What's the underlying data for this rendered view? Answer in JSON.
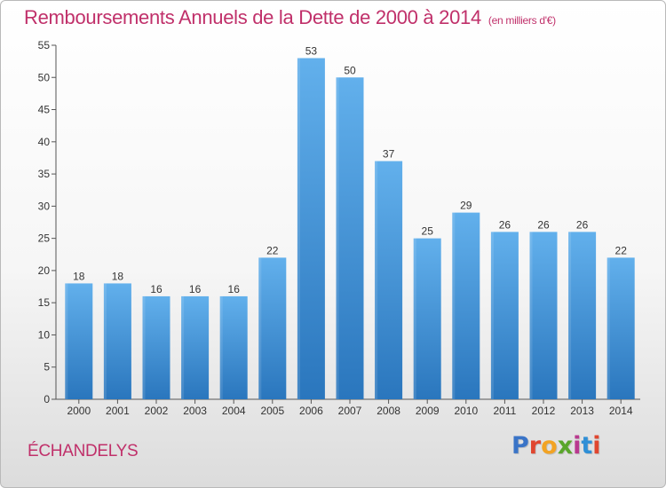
{
  "header": {
    "title": "Remboursements Annuels de la Dette de 2000 à 2014",
    "unit": "(en milliers d'€)"
  },
  "footer": {
    "place": "ÉCHANDELYS",
    "logo": "Proxiti",
    "logo_colors": [
      "#3a74c7",
      "#e0462f",
      "#f2a324",
      "#5aa62b",
      "#b9398f",
      "#2f8fd6",
      "#e0462f"
    ]
  },
  "chart_data": {
    "type": "bar",
    "title": "Remboursements Annuels de la Dette de 2000 à 2014",
    "subtitle": "(en milliers d'€)",
    "xlabel": "",
    "ylabel": "",
    "categories": [
      "2000",
      "2001",
      "2002",
      "2003",
      "2004",
      "2005",
      "2006",
      "2007",
      "2008",
      "2009",
      "2010",
      "2011",
      "2012",
      "2013",
      "2014"
    ],
    "values": [
      18,
      18,
      16,
      16,
      16,
      22,
      53,
      50,
      37,
      25,
      29,
      26,
      26,
      26,
      22
    ],
    "ylim": [
      0,
      55
    ],
    "yticks": [
      0,
      5,
      10,
      15,
      20,
      25,
      30,
      35,
      40,
      45,
      50,
      55
    ],
    "grid": false,
    "bar_color": "#3d8fd8",
    "bar_color_light": "#62b0ec",
    "bar_color_dark": "#2a76bd"
  }
}
